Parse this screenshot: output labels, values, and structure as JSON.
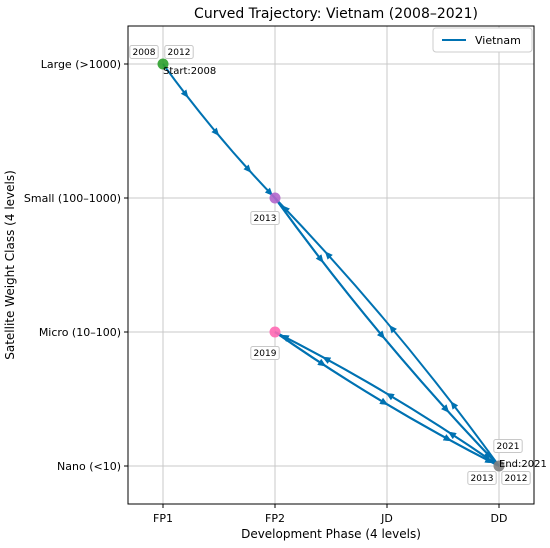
{
  "chart_data": {
    "type": "line",
    "title": "Curved Trajectory: Vietnam (2008–2021)",
    "xlabel": "Development Phase (4 levels)",
    "ylabel": "Satellite Weight Class (4 levels)",
    "x_categories": [
      "FP1",
      "FP2",
      "JD",
      "DD"
    ],
    "y_categories": [
      "Nano (<10)",
      "Micro (10–100)",
      "Small (100–1000)",
      "Large (>1000)"
    ],
    "grid": true,
    "legend_position": "top-right",
    "series": [
      {
        "name": "Vietnam",
        "color": "#0072b2",
        "points": [
          {
            "year": 2008,
            "x": 0,
            "y": 3
          },
          {
            "year": 2012,
            "x": 0,
            "y": 3
          },
          {
            "year": 2013,
            "x": 1,
            "y": 2
          },
          {
            "year": 2012,
            "x": 3,
            "y": 0
          },
          {
            "year": 2013,
            "x": 1,
            "y": 2
          },
          {
            "year": 2013,
            "x": 3,
            "y": 0
          },
          {
            "year": 2019,
            "x": 1,
            "y": 1
          },
          {
            "year": 2013,
            "x": 3,
            "y": 0
          },
          {
            "year": 2021,
            "x": 1,
            "y": 1
          },
          {
            "year": 2021,
            "x": 3,
            "y": 0
          }
        ]
      }
    ],
    "markers": [
      {
        "x": 0,
        "y": 3,
        "color": "#2ca02c"
      },
      {
        "x": 1,
        "y": 2,
        "color": "#b266cc"
      },
      {
        "x": 1,
        "y": 1,
        "color": "#ff69b4"
      },
      {
        "x": 3,
        "y": 0,
        "color": "#7f7f7f"
      }
    ],
    "annotations": [
      {
        "text": "2008",
        "x": 0,
        "y": 3,
        "boxed": true
      },
      {
        "text": "2012",
        "x": 0,
        "y": 3,
        "boxed": true
      },
      {
        "text": "Start:2008",
        "x": 0,
        "y": 3,
        "boxed": false
      },
      {
        "text": "2013",
        "x": 1,
        "y": 2,
        "boxed": true
      },
      {
        "text": "2019",
        "x": 1,
        "y": 1,
        "boxed": true
      },
      {
        "text": "2021",
        "x": 3,
        "y": 0,
        "boxed": true
      },
      {
        "text": "End:2021",
        "x": 3,
        "y": 0,
        "boxed": false
      },
      {
        "text": "2013",
        "x": 3,
        "y": 0,
        "boxed": true
      },
      {
        "text": "2012",
        "x": 3,
        "y": 0,
        "boxed": true
      }
    ]
  }
}
